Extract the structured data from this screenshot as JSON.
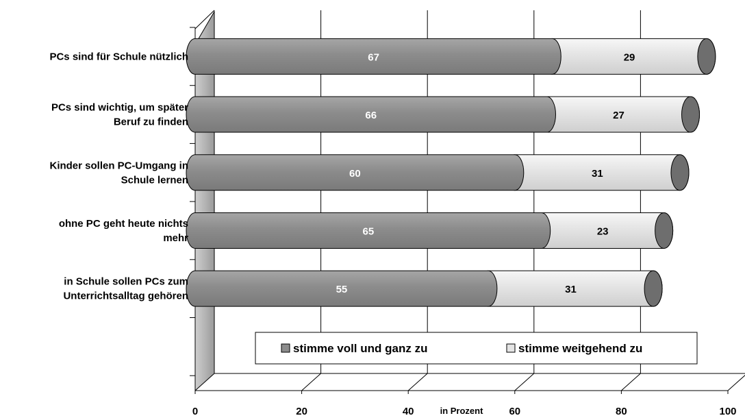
{
  "chart_data": {
    "type": "bar",
    "orientation": "horizontal",
    "stacked": true,
    "three_d": true,
    "categories": [
      "PCs sind für Schule nützlich",
      "PCs sind wichtig, um später Beruf zu finden",
      "Kinder sollen PC-Umgang in Schule lernen",
      "ohne PC geht heute nichts mehr",
      "in Schule sollen PCs zum Unterrichtsalltag gehören"
    ],
    "category_lines": [
      [
        "PCs sind für Schule nützlich"
      ],
      [
        "PCs sind wichtig, um später",
        "Beruf zu finden"
      ],
      [
        "Kinder sollen PC-Umgang in",
        "Schule lernen"
      ],
      [
        "ohne PC geht heute nichts",
        "mehr"
      ],
      [
        "in Schule sollen PCs zum",
        "Unterrichtsalltag gehören"
      ]
    ],
    "series": [
      {
        "name": "stimme voll und ganz zu",
        "values": [
          67,
          66,
          60,
          65,
          55
        ],
        "color": "#8c8c8c",
        "label_color": "#ffffff"
      },
      {
        "name": "stimme weitgehend zu",
        "values": [
          29,
          27,
          31,
          23,
          31
        ],
        "color": "#e4e4e4",
        "label_color": "#000000"
      }
    ],
    "xlabel": "in Prozent",
    "xlim": [
      0,
      100
    ],
    "xticks": [
      "0",
      "20",
      "40",
      "60",
      "80",
      "100"
    ],
    "grid": "vertical",
    "legend_position": "bottom-inside",
    "colors": {
      "end_cap": "#6e6e6e",
      "wall": "#9a9a9a",
      "grid": "#000000"
    }
  }
}
